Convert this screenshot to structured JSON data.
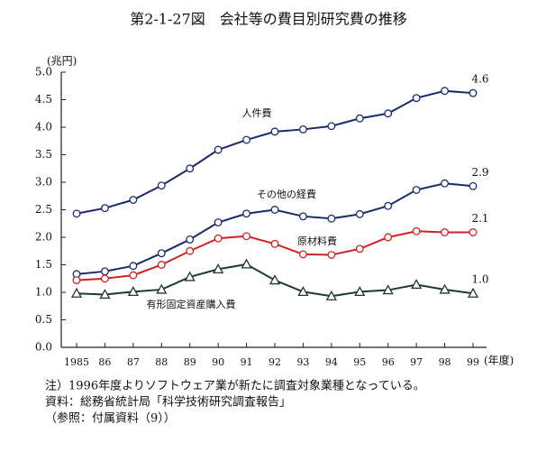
{
  "chart_data": {
    "type": "line",
    "title": "第2-1-27図　会社等の費目別研究費の推移",
    "y_unit": "(兆円)",
    "x_unit": "(年度)",
    "categories": [
      "1985",
      "86",
      "87",
      "88",
      "89",
      "90",
      "91",
      "92",
      "93",
      "94",
      "95",
      "96",
      "97",
      "98",
      "99"
    ],
    "series": [
      {
        "name": "人件費",
        "color": "#1a2a6c",
        "marker": "circle",
        "values": [
          2.43,
          2.53,
          2.68,
          2.94,
          3.25,
          3.59,
          3.77,
          3.92,
          3.96,
          4.02,
          4.16,
          4.25,
          4.53,
          4.66,
          4.62
        ],
        "value_labels": [
          null,
          null,
          null,
          null,
          null,
          null,
          null,
          null,
          null,
          null,
          null,
          null,
          null,
          null,
          "4.6"
        ]
      },
      {
        "name": "その他の経費",
        "color": "#1a2a6c",
        "marker": "circle",
        "values": [
          1.33,
          1.38,
          1.48,
          1.71,
          1.96,
          2.27,
          2.43,
          2.5,
          2.38,
          2.34,
          2.42,
          2.57,
          2.86,
          2.98,
          2.93
        ],
        "value_labels": [
          null,
          null,
          null,
          null,
          null,
          null,
          null,
          null,
          null,
          null,
          null,
          null,
          null,
          null,
          "2.9"
        ]
      },
      {
        "name": "原材料費",
        "color": "#d42020",
        "marker": "circle",
        "values": [
          1.22,
          1.25,
          1.31,
          1.5,
          1.75,
          1.98,
          2.02,
          1.88,
          1.69,
          1.68,
          1.79,
          2.0,
          2.11,
          2.09,
          2.09
        ],
        "value_labels": [
          null,
          null,
          null,
          null,
          null,
          null,
          null,
          null,
          null,
          null,
          null,
          null,
          null,
          null,
          "2.1"
        ]
      },
      {
        "name": "有形固定資産購入費",
        "color": "#1e3a2a",
        "marker": "triangle",
        "values": [
          0.98,
          0.96,
          1.01,
          1.05,
          1.28,
          1.42,
          1.51,
          1.22,
          1.01,
          0.93,
          1.01,
          1.04,
          1.14,
          1.05,
          0.98
        ],
        "value_labels": [
          null,
          null,
          null,
          null,
          null,
          null,
          null,
          null,
          null,
          null,
          null,
          null,
          null,
          null,
          "1.0"
        ]
      }
    ],
    "ylim": [
      0,
      5
    ],
    "yticks": [
      {
        "value": 0,
        "label": "0.0"
      },
      0.5,
      {
        "value": 1,
        "label": "1.0"
      },
      1.5,
      {
        "value": 2,
        "label": "2.0"
      },
      2.5,
      {
        "value": 3,
        "label": "3.0"
      },
      3.5,
      {
        "value": 4,
        "label": "4.0"
      },
      4.5,
      {
        "value": 5,
        "label": "5.0"
      }
    ],
    "grid": false,
    "notes": [
      "注）1996年度よりソフトウェア業が新たに調査対象業種となっている。",
      "資料：総務省統計局「科学技術研究調査報告」",
      "（参照：付属資料（9））"
    ]
  }
}
